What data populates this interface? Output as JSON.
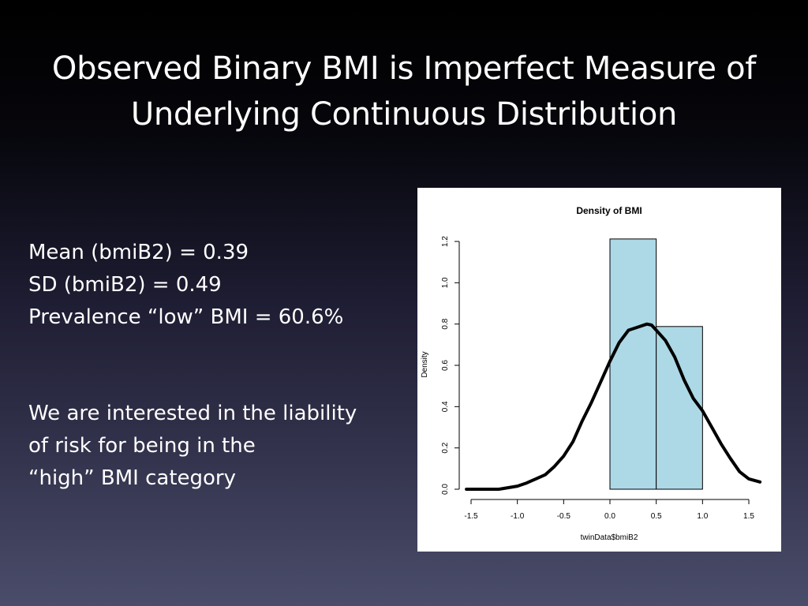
{
  "slide": {
    "title_line1": "Observed Binary BMI is Imperfect Measure of",
    "title_line2": "Underlying Continuous Distribution",
    "stats": [
      "Mean (bmiB2) = 0.39",
      "SD (bmiB2) = 0.49",
      "Prevalence “low” BMI = 60.6%"
    ],
    "note": [
      "We are interested in the liability",
      "of risk for being in the",
      "“high” BMI category"
    ]
  },
  "chart_data": {
    "type": "bar",
    "title": "Density of BMI",
    "xlabel": "twinData$bmiB2",
    "ylabel": "Density",
    "xlim": [
      -1.5,
      1.5
    ],
    "ylim": [
      0,
      1.2
    ],
    "x_ticks": [
      "-1.5",
      "-1.0",
      "-0.5",
      "0.0",
      "0.5",
      "1.0",
      "1.5"
    ],
    "y_ticks": [
      "0.0",
      "0.2",
      "0.4",
      "0.6",
      "0.8",
      "1.0",
      "1.2"
    ],
    "histogram": {
      "bins": [
        {
          "from": 0.0,
          "to": 0.5,
          "density": 1.212
        },
        {
          "from": 0.5,
          "to": 1.0,
          "density": 0.788
        }
      ],
      "fill": "#add8e6",
      "stroke": "#000000"
    },
    "density_curve": {
      "x": [
        -1.55,
        -1.4,
        -1.2,
        -1.0,
        -0.9,
        -0.8,
        -0.7,
        -0.6,
        -0.5,
        -0.4,
        -0.3,
        -0.2,
        -0.1,
        0.0,
        0.1,
        0.2,
        0.3,
        0.4,
        0.45,
        0.5,
        0.6,
        0.7,
        0.8,
        0.9,
        1.0,
        1.1,
        1.2,
        1.3,
        1.4,
        1.5,
        1.62
      ],
      "y": [
        0.0,
        0.0,
        0.0,
        0.015,
        0.03,
        0.05,
        0.07,
        0.11,
        0.16,
        0.23,
        0.33,
        0.42,
        0.52,
        0.62,
        0.71,
        0.77,
        0.785,
        0.8,
        0.795,
        0.77,
        0.72,
        0.64,
        0.53,
        0.44,
        0.38,
        0.3,
        0.22,
        0.15,
        0.085,
        0.05,
        0.035
      ],
      "stroke": "#000000"
    }
  }
}
